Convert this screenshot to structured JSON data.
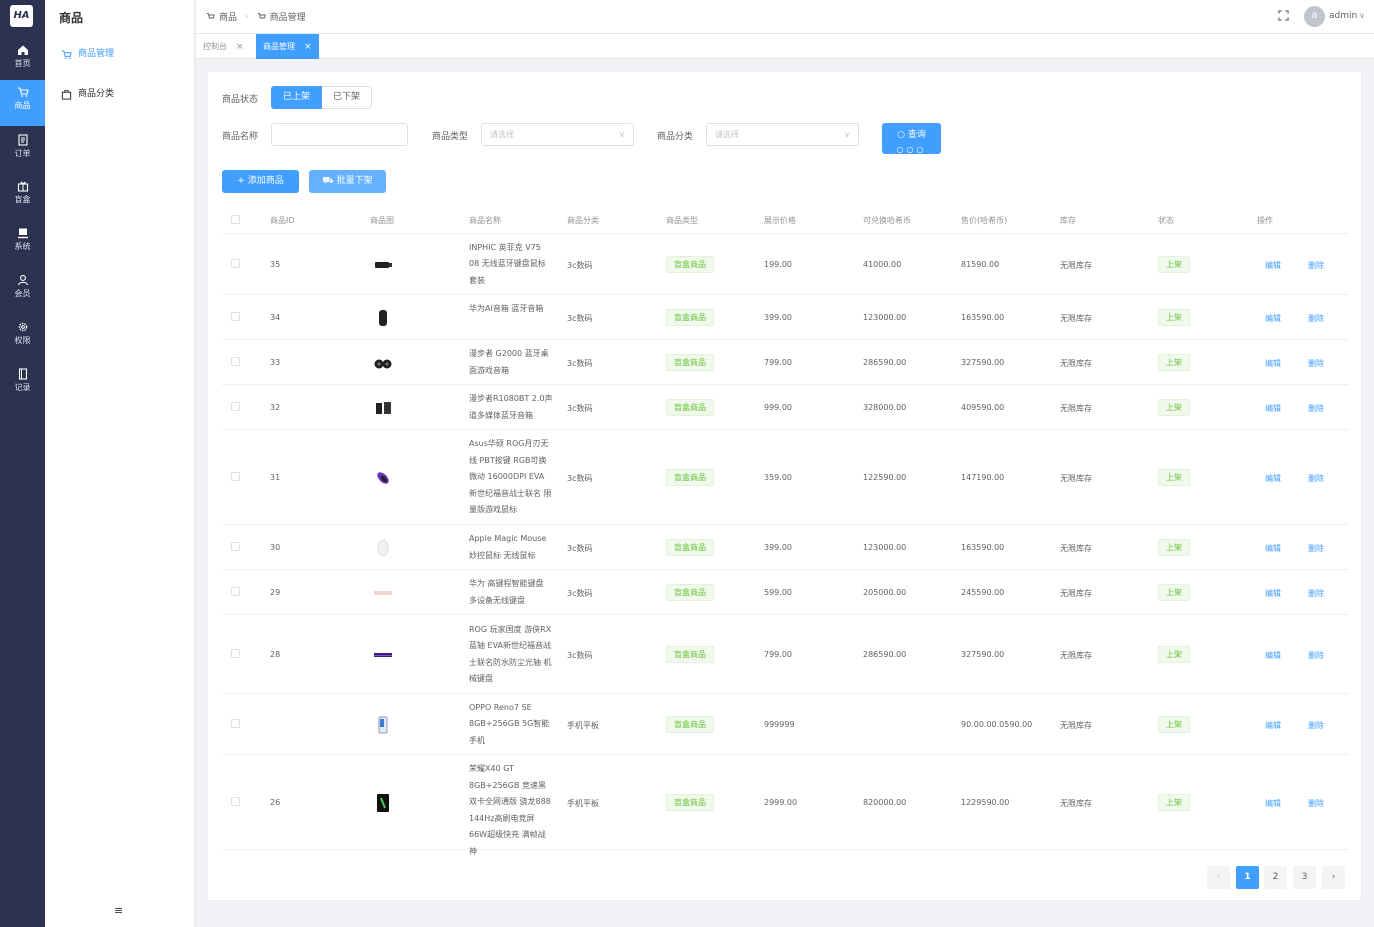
{
  "rail": {
    "logo": "HA",
    "items": [
      {
        "label": "首页",
        "icon": "home-icon"
      },
      {
        "label": "商品",
        "icon": "cart-icon"
      },
      {
        "label": "订单",
        "icon": "order-icon"
      },
      {
        "label": "盲盒",
        "icon": "gift-box-icon"
      },
      {
        "label": "系统",
        "icon": "system-icon"
      },
      {
        "label": "会员",
        "icon": "member-icon"
      },
      {
        "label": "权限",
        "icon": "permission-icon"
      },
      {
        "label": "记录",
        "icon": "record-icon"
      }
    ]
  },
  "submenu": {
    "title": "商品",
    "items": [
      {
        "label": "商品管理",
        "icon": "cart-icon"
      },
      {
        "label": "商品分类",
        "icon": "bag-icon"
      }
    ],
    "collapse": "≡"
  },
  "header": {
    "crumbs": [
      "商品",
      "商品管理"
    ],
    "avatar": "a",
    "user": "admin"
  },
  "tabs": [
    {
      "label": "控制台"
    },
    {
      "label": "商品管理"
    }
  ],
  "filters": {
    "status_label": "商品状态",
    "status_on": "已上架",
    "status_off": "已下架",
    "name_label": "商品名称",
    "name_value": "",
    "type_label": "商品类型",
    "type_placeholder": "请选择",
    "category_label": "商品分类",
    "category_placeholder": "请选择",
    "query_button": "查询",
    "query_dots": "○○○"
  },
  "actions": {
    "add": "+ 添加商品",
    "batch_off": "批量下架"
  },
  "table": {
    "headers": [
      "商品ID",
      "商品图",
      "商品名称",
      "商品分类",
      "商品类型",
      "展示价格",
      "可兑换哈希币",
      "售价(哈希币)",
      "库存",
      "状态",
      "操作"
    ],
    "rows": [
      {
        "id": "35",
        "name": "INPHIC 英菲克 V75 08 无线蓝牙键盘鼠标套装",
        "category": "3c数码",
        "type": "盲盒商品",
        "price": "199.00",
        "exchange": "41000.00",
        "sale": "81590.00",
        "stock": "无限库存",
        "status": "上架",
        "edit": "编辑",
        "delete": "删除"
      },
      {
        "id": "34",
        "name": "华为AI音箱 蓝牙音箱",
        "category": "3c数码",
        "type": "盲盒商品",
        "price": "399.00",
        "exchange": "123000.00",
        "sale": "163590.00",
        "stock": "无限库存",
        "status": "上架",
        "edit": "编辑",
        "delete": "删除"
      },
      {
        "id": "33",
        "name": "漫步者 G2000 蓝牙桌面游戏音箱",
        "category": "3c数码",
        "type": "盲盒商品",
        "price": "799.00",
        "exchange": "286590.00",
        "sale": "327590.00",
        "stock": "无限库存",
        "status": "上架",
        "edit": "编辑",
        "delete": "删除"
      },
      {
        "id": "32",
        "name": "漫步者R1080BT 2.0声道多媒体蓝牙音箱",
        "category": "3c数码",
        "type": "盲盒商品",
        "price": "999.00",
        "exchange": "328000.00",
        "sale": "409590.00",
        "stock": "无限库存",
        "status": "上架",
        "edit": "编辑",
        "delete": "删除"
      },
      {
        "id": "31",
        "name": "Asus华硕 ROG月刃无线 PBT按键 RGB可换微动 16000DPI EVA 新世纪福音战士联名 限量版游戏鼠标",
        "category": "3c数码",
        "type": "盲盒商品",
        "price": "359.00",
        "exchange": "122590.00",
        "sale": "147190.00",
        "stock": "无限库存",
        "status": "上架",
        "edit": "编辑",
        "delete": "删除"
      },
      {
        "id": "30",
        "name": "Apple Magic Mouse 妙控鼠标 无线鼠标",
        "category": "3c数码",
        "type": "盲盒商品",
        "price": "399.00",
        "exchange": "123000.00",
        "sale": "163590.00",
        "stock": "无限库存",
        "status": "上架",
        "edit": "编辑",
        "delete": "删除"
      },
      {
        "id": "29",
        "name": "华为 高键程智能键盘 多设备无线键盘",
        "category": "3c数码",
        "type": "盲盒商品",
        "price": "599.00",
        "exchange": "205000.00",
        "sale": "245590.00",
        "stock": "无限库存",
        "status": "上架",
        "edit": "编辑",
        "delete": "删除"
      },
      {
        "id": "28",
        "name": "ROG 玩家国度 游侠RX蓝轴 EVA新世纪福音战士联名防水防尘光轴 机械键盘",
        "category": "3c数码",
        "type": "盲盒商品",
        "price": "799.00",
        "exchange": "286590.00",
        "sale": "327590.00",
        "stock": "无限库存",
        "status": "上架",
        "edit": "编辑",
        "delete": "删除"
      },
      {
        "id": "",
        "name": "OPPO Reno7 SE 8GB+256GB 5G智能手机",
        "category": "手机平板",
        "type": "盲盒商品",
        "price": "999999",
        "exchange": "",
        "sale": "90.00.00.0590.00",
        "stock": "无限库存",
        "status": "上架",
        "edit": "编辑",
        "delete": "删除"
      },
      {
        "id": "26",
        "name": "荣耀X40 GT 8GB+256GB 竞速黑 双卡全网通版 骁龙888 144Hz高刷电竞屏 66W超级快充 满帧战神",
        "category": "手机平板",
        "type": "盲盒商品",
        "price": "2999.00",
        "exchange": "820000.00",
        "sale": "1229590.00",
        "stock": "无限库存",
        "status": "上架",
        "edit": "编辑",
        "delete": "删除"
      }
    ]
  },
  "pagination": {
    "prev": "‹",
    "pages": [
      "1",
      "2",
      "3"
    ],
    "next": "›",
    "current": 1
  },
  "colors": {
    "primary": "#409eff",
    "rail": "#2b3350",
    "tag_green": "#67c23a"
  }
}
